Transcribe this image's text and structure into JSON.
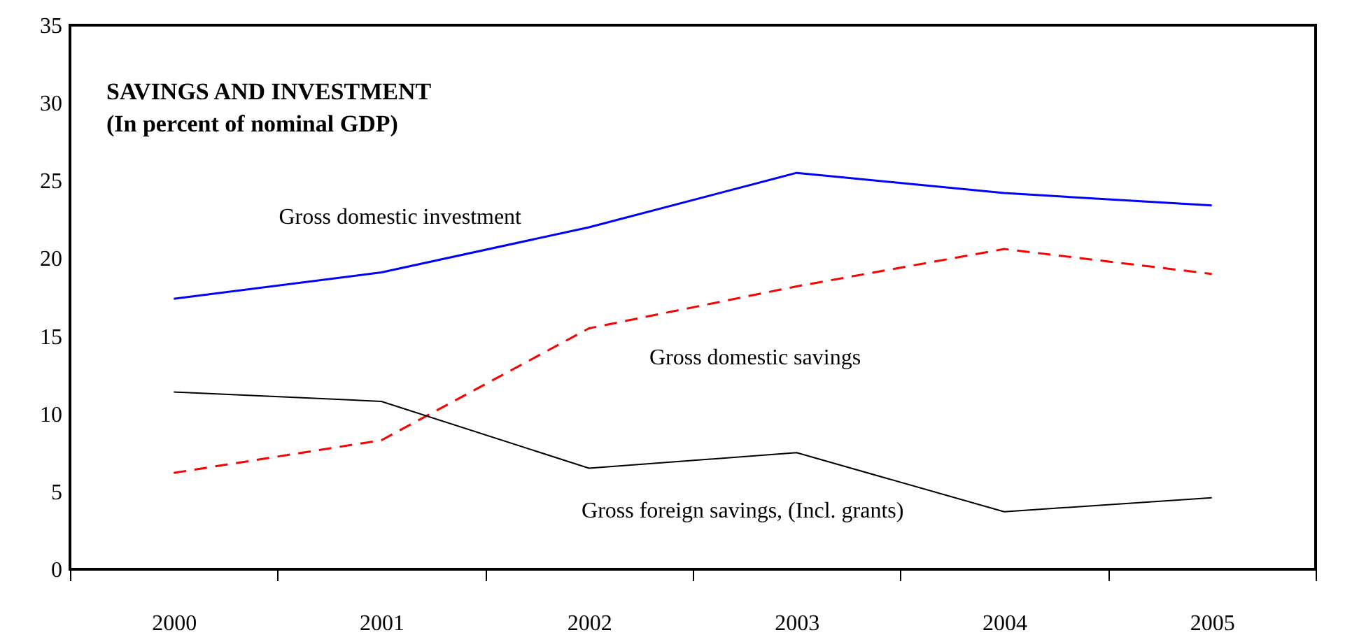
{
  "chart_data": {
    "type": "line",
    "title": "SAVINGS AND INVESTMENT",
    "subtitle": "(In percent of nominal GDP)",
    "categories": [
      "2000",
      "2001",
      "2002",
      "2003",
      "2004",
      "2005"
    ],
    "series": [
      {
        "name": "Gross domestic investment",
        "color": "#0000ff",
        "line_style": "solid",
        "values": [
          17.4,
          19.1,
          22.0,
          25.5,
          24.2,
          23.4
        ]
      },
      {
        "name": "Gross domestic savings",
        "color": "#ff0000",
        "line_style": "dashed",
        "values": [
          6.2,
          8.3,
          15.5,
          18.2,
          20.6,
          19.0
        ]
      },
      {
        "name": "Gross foreign savings, (Incl. grants)",
        "color": "#000000",
        "line_style": "solid",
        "values": [
          11.4,
          10.8,
          6.5,
          7.5,
          3.7,
          4.6
        ]
      }
    ],
    "ylim": [
      0,
      35
    ],
    "yticks": [
      0,
      5,
      10,
      15,
      20,
      25,
      30,
      35
    ],
    "grid": false,
    "marker": "none"
  }
}
